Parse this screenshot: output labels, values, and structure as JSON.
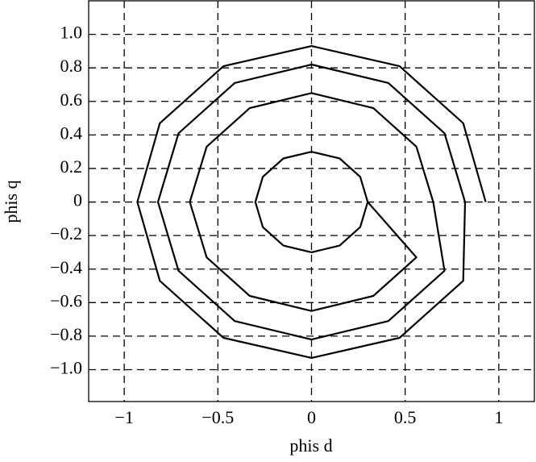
{
  "chart_data": {
    "type": "line",
    "x_label": "phis d",
    "y_label": "phis q",
    "x": [
      0.93,
      0.81,
      0.47,
      0,
      -0.47,
      -0.81,
      -0.93,
      -0.81,
      -0.47,
      0,
      0.47,
      0.81,
      0.82,
      0.71,
      0.41,
      0,
      -0.41,
      -0.71,
      -0.82,
      -0.71,
      -0.41,
      0,
      0.41,
      0.71,
      0.65,
      0.56,
      0.33,
      0,
      -0.33,
      -0.56,
      -0.65,
      -0.56,
      -0.33,
      0,
      0.33,
      0.56,
      0.3,
      0.26,
      0.15,
      0,
      -0.15,
      -0.26,
      -0.3,
      -0.26,
      -0.15,
      0,
      0.15,
      0.26,
      0.3
    ],
    "series": [
      {
        "color": "#000000",
        "values": [
          0,
          0.47,
          0.81,
          0.93,
          0.81,
          0.47,
          0,
          -0.47,
          -0.81,
          -0.93,
          -0.81,
          -0.47,
          0,
          0.41,
          0.71,
          0.82,
          0.71,
          0.41,
          0,
          -0.41,
          -0.71,
          -0.82,
          -0.71,
          -0.41,
          0,
          0.33,
          0.56,
          0.65,
          0.56,
          0.33,
          0,
          -0.33,
          -0.56,
          -0.65,
          -0.56,
          -0.33,
          0,
          0.15,
          0.26,
          0.3,
          0.26,
          0.15,
          0,
          -0.15,
          -0.26,
          -0.3,
          -0.26,
          -0.15,
          0
        ]
      }
    ],
    "xlim": [
      -1.19,
      1.19
    ],
    "ylim": [
      -1.19,
      1.2
    ],
    "xticks": [
      {
        "value": -1,
        "label": "−1"
      },
      {
        "value": -0.5,
        "label": "−0.5"
      },
      0,
      0.5,
      1
    ],
    "yticks": [
      {
        "value": 1,
        "label": "1.0"
      },
      0.8,
      0.6,
      0.4,
      0.2,
      0,
      {
        "value": -0.2,
        "label": "−0.2"
      },
      {
        "value": -0.4,
        "label": "−0.4"
      },
      {
        "value": -0.6,
        "label": "−0.6"
      },
      {
        "value": -0.8,
        "label": "−0.8"
      },
      {
        "value": -1,
        "label": "−1.0"
      }
    ],
    "grid": true
  }
}
